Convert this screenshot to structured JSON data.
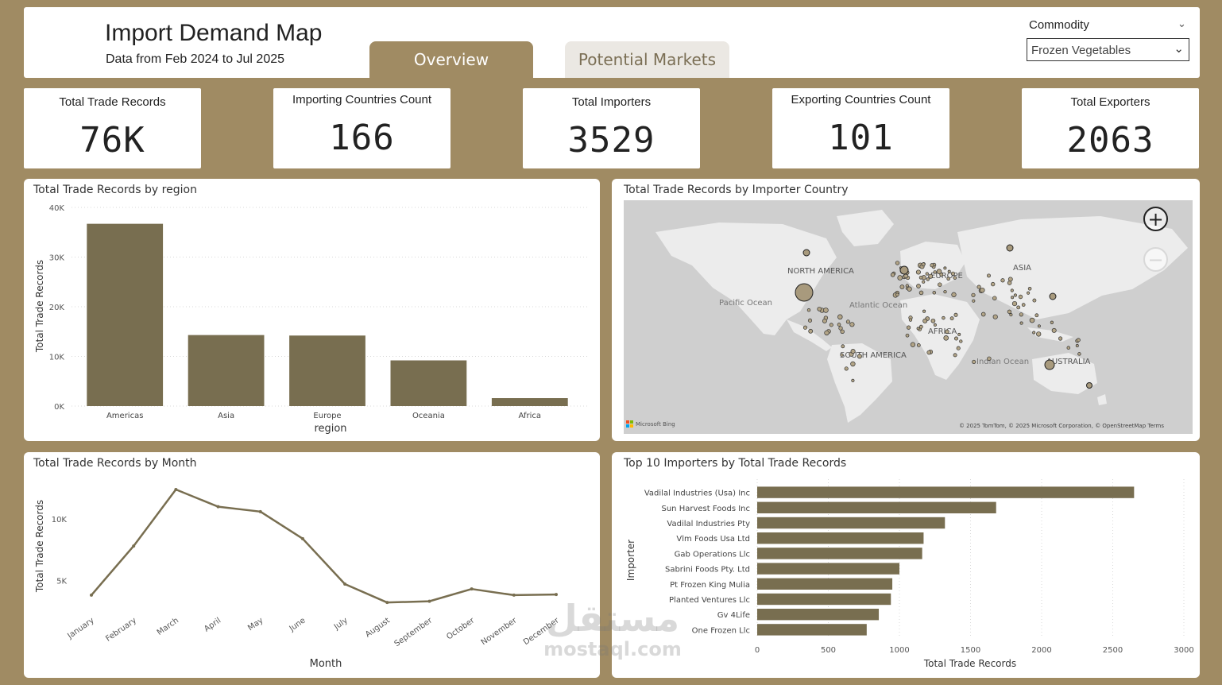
{
  "header": {
    "title": "Import Demand Map",
    "subtitle": "Data from Feb 2024 to Jul 2025",
    "tabs": [
      {
        "label": "Overview",
        "active": true
      },
      {
        "label": "Potential Markets",
        "active": false
      }
    ],
    "slicer": {
      "label": "Commodity",
      "value": "Frozen Vegetables"
    }
  },
  "kpis": [
    {
      "title": "Total Trade Records",
      "value": "76K"
    },
    {
      "title": "Importing Countries Count",
      "value": "166"
    },
    {
      "title": "Total Importers",
      "value": "3529"
    },
    {
      "title": "Exporting Countries Count",
      "value": "101"
    },
    {
      "title": "Total Exporters",
      "value": "2063"
    }
  ],
  "map": {
    "title": "Total Trade Records by Importer Country",
    "labels": {
      "north_america": "NORTH AMERICA",
      "south_america": "SOUTH AMERICA",
      "europe": "EUROPE",
      "africa": "AFRICA",
      "asia": "ASIA",
      "australia": "AUSTRALIA",
      "pacific": "Pacific Ocean",
      "atlantic": "Atlantic Ocean",
      "indian": "Indian Ocean"
    },
    "attribution_left": "Microsoft Bing",
    "attribution_right": "© 2025 TomTom, © 2025 Microsoft Corporation, © OpenStreetMap  Terms",
    "zoom_in": "+",
    "zoom_out": "−"
  },
  "watermark": {
    "arabic": "مستقل",
    "latin": "mostaql.com"
  },
  "colors": {
    "bar": "#786e50",
    "background": "#a08b63",
    "tab_inactive": "#ebe8e3"
  },
  "chart_data": [
    {
      "type": "bar",
      "title": "Total Trade Records by region",
      "categories": [
        "Americas",
        "Asia",
        "Europe",
        "Oceania",
        "Africa"
      ],
      "values": [
        36700,
        14300,
        14200,
        9200,
        1600
      ],
      "xlabel": "region",
      "ylabel": "Total Trade Records",
      "ylim": [
        0,
        40000
      ],
      "yticks": [
        "0K",
        "10K",
        "20K",
        "30K",
        "40K"
      ],
      "grid": true
    },
    {
      "type": "line",
      "title": "Total Trade Records by Month",
      "categories": [
        "January",
        "February",
        "March",
        "April",
        "May",
        "June",
        "July",
        "August",
        "September",
        "October",
        "November",
        "December"
      ],
      "values": [
        3800,
        7800,
        12400,
        11000,
        10600,
        8400,
        4700,
        3200,
        3300,
        4300,
        3800,
        3850
      ],
      "xlabel": "Month",
      "ylabel": "Total Trade Records",
      "ylim": [
        2500,
        13500
      ],
      "yticks": [
        "5K",
        "10K"
      ],
      "grid": false
    },
    {
      "type": "bar",
      "orientation": "horizontal",
      "title": "Top 10 Importers by Total Trade Records",
      "categories": [
        "Vadilal Industries (Usa) Inc",
        "Sun Harvest Foods Inc",
        "Vadilal Industries Pty",
        "Vlm Foods Usa Ltd",
        "Gab Operations Llc",
        "Sabrini Foods Pty. Ltd",
        "Pt Frozen King Mulia",
        "Planted Ventures Llc",
        "Gv 4Life",
        "One Frozen Llc"
      ],
      "values": [
        2650,
        1680,
        1320,
        1170,
        1160,
        1000,
        950,
        940,
        855,
        770
      ],
      "xlabel": "Total Trade Records",
      "ylabel": "Importer",
      "xlim": [
        0,
        3000
      ],
      "xticks": [
        "0",
        "500",
        "1000",
        "1500",
        "2000",
        "2500",
        "3000"
      ],
      "grid": true
    }
  ]
}
